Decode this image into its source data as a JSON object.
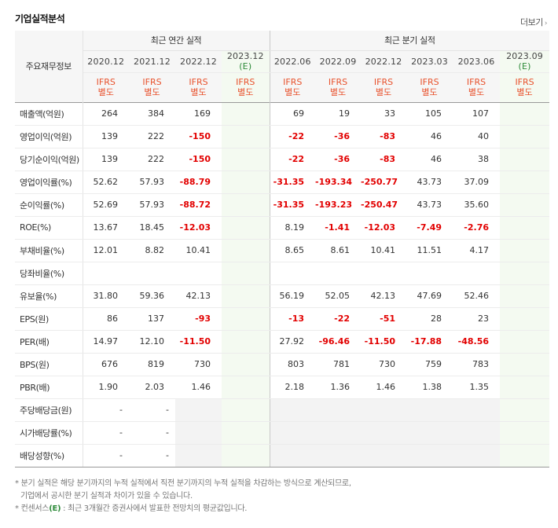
{
  "section": {
    "title": "기업실적분석",
    "more_label": "더보기"
  },
  "header": {
    "label_col": "주요재무정보",
    "annual_group": "최근 연간 실적",
    "quarter_group": "최근 분기 실적",
    "annual_periods": [
      "2020.12",
      "2021.12",
      "2022.12",
      "2023.12"
    ],
    "quarter_periods": [
      "2022.06",
      "2022.09",
      "2022.12",
      "2023.03",
      "2023.06",
      "2023.09"
    ],
    "est_mark": "(E)",
    "ifrs_line1": "IFRS",
    "ifrs_line2": "별도"
  },
  "rows": [
    {
      "label": "매출액(억원)",
      "values": [
        "264",
        "384",
        "169",
        "",
        "69",
        "19",
        "33",
        "105",
        "107",
        ""
      ]
    },
    {
      "label": "영업이익(억원)",
      "values": [
        "139",
        "222",
        "-150",
        "",
        "-22",
        "-36",
        "-83",
        "46",
        "40",
        ""
      ]
    },
    {
      "label": "당기순이익(억원)",
      "values": [
        "139",
        "222",
        "-150",
        "",
        "-22",
        "-36",
        "-83",
        "46",
        "38",
        ""
      ]
    },
    {
      "label": "영업이익률(%)",
      "values": [
        "52.62",
        "57.93",
        "-88.79",
        "",
        "-31.35",
        "-193.34",
        "-250.77",
        "43.73",
        "37.09",
        ""
      ]
    },
    {
      "label": "순이익률(%)",
      "values": [
        "52.69",
        "57.93",
        "-88.72",
        "",
        "-31.35",
        "-193.23",
        "-250.47",
        "43.73",
        "35.60",
        ""
      ]
    },
    {
      "label": "ROE(%)",
      "values": [
        "13.67",
        "18.45",
        "-12.03",
        "",
        "8.19",
        "-1.41",
        "-12.03",
        "-7.49",
        "-2.76",
        ""
      ]
    },
    {
      "label": "부채비율(%)",
      "values": [
        "12.01",
        "8.82",
        "10.41",
        "",
        "8.65",
        "8.61",
        "10.41",
        "11.51",
        "4.17",
        ""
      ]
    },
    {
      "label": "당좌비율(%)",
      "values": [
        "",
        "",
        "",
        "",
        "",
        "",
        "",
        "",
        "",
        ""
      ]
    },
    {
      "label": "유보율(%)",
      "values": [
        "31.80",
        "59.36",
        "42.13",
        "",
        "56.19",
        "52.05",
        "42.13",
        "47.69",
        "52.46",
        ""
      ]
    },
    {
      "label": "EPS(원)",
      "values": [
        "86",
        "137",
        "-93",
        "",
        "-13",
        "-22",
        "-51",
        "28",
        "23",
        ""
      ]
    },
    {
      "label": "PER(배)",
      "values": [
        "14.97",
        "12.10",
        "-11.50",
        "",
        "27.92",
        "-96.46",
        "-11.50",
        "-17.88",
        "-48.56",
        ""
      ]
    },
    {
      "label": "BPS(원)",
      "values": [
        "676",
        "819",
        "730",
        "",
        "803",
        "781",
        "730",
        "759",
        "783",
        ""
      ]
    },
    {
      "label": "PBR(배)",
      "values": [
        "1.90",
        "2.03",
        "1.46",
        "",
        "2.18",
        "1.36",
        "1.46",
        "1.38",
        "1.35",
        ""
      ]
    },
    {
      "label": "주당배당금(원)",
      "values": [
        "-",
        "-",
        "",
        "",
        "",
        "",
        "",
        "",
        "",
        ""
      ]
    },
    {
      "label": "시가배당률(%)",
      "values": [
        "-",
        "-",
        "",
        "",
        "",
        "",
        "",
        "",
        "",
        ""
      ]
    },
    {
      "label": "배당성향(%)",
      "values": [
        "-",
        "-",
        "",
        "",
        "",
        "",
        "",
        "",
        "",
        ""
      ]
    }
  ],
  "notes": {
    "line1": "* 분기 실적은 해당 분기까지의 누적 실적에서 직전 분기까지의 누적 실적을 차감하는 방식으로 계산되므로,",
    "line2": "기업에서 공시한 분기 실적과 차이가 있을 수 있습니다.",
    "line3_prefix": "* 컨센서스",
    "line3_mark": "(E)",
    "line3_suffix": " : 최근 3개월간 증권사에서 발표한 전망치의 평균값입니다."
  }
}
